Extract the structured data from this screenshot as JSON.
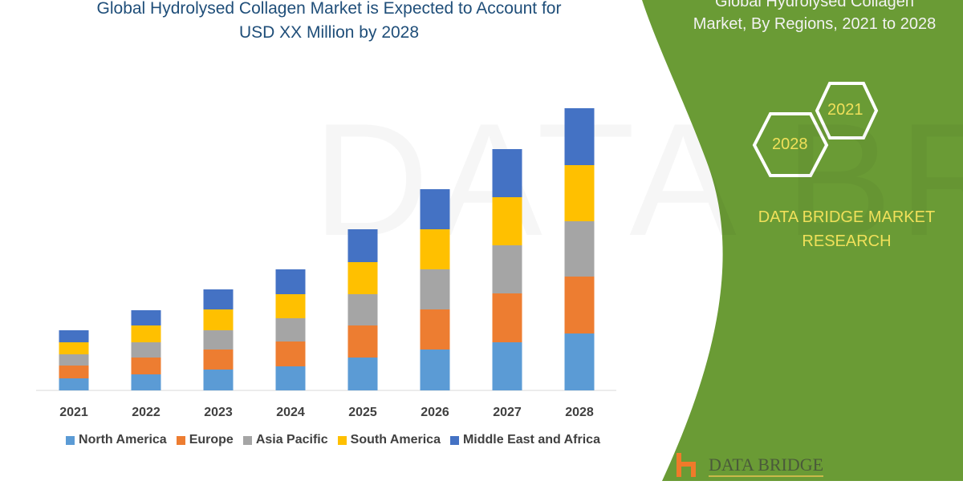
{
  "chart_data": {
    "type": "bar",
    "stacked": true,
    "title": "Global Hydrolysed Collagen Market is Expected to Account for USD XX Million by 2028",
    "categories": [
      "2021",
      "2022",
      "2023",
      "2024",
      "2025",
      "2026",
      "2027",
      "2028"
    ],
    "series": [
      {
        "name": "North America",
        "color": "#5b9bd5",
        "values": [
          15,
          20,
          26,
          30,
          41,
          51,
          60,
          71
        ]
      },
      {
        "name": "Europe",
        "color": "#ed7d31",
        "values": [
          16,
          21,
          25,
          31,
          40,
          50,
          61,
          71
        ]
      },
      {
        "name": "Asia Pacific",
        "color": "#a5a5a5",
        "values": [
          14,
          19,
          24,
          29,
          39,
          50,
          60,
          69
        ]
      },
      {
        "name": "South America",
        "color": "#ffc000",
        "values": [
          15,
          21,
          26,
          30,
          40,
          50,
          60,
          70
        ]
      },
      {
        "name": "Middle East and Africa",
        "color": "#4472c4",
        "values": [
          15,
          19,
          25,
          31,
          41,
          50,
          60,
          71
        ]
      }
    ],
    "ylim": [
      0,
      360
    ],
    "grid": false,
    "legend": "bottom"
  },
  "side": {
    "title_line1": "Global Hydrolysed Collagen",
    "title_line2": "Market, By Regions, 2021 to 2028",
    "hex_a": "2021",
    "hex_b": "2028",
    "brand_line1": "DATA BRIDGE MARKET",
    "brand_line2": "RESEARCH",
    "logo_text": "DATA BRIDGE",
    "green": "#6a9b35"
  },
  "watermark": "DATA BRIDGE"
}
